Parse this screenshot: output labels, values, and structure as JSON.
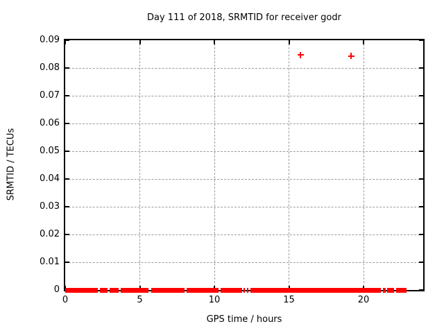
{
  "chart_data": {
    "type": "scatter",
    "title": "Day 111 of 2018, SRMTID for receiver godr",
    "xlabel": "GPS time / hours",
    "ylabel": "SRMTID / TECUs",
    "xlim": [
      0,
      24
    ],
    "ylim": [
      0,
      0.09
    ],
    "xticks": {
      "values": [
        0,
        5,
        10,
        15,
        20
      ],
      "labels": [
        "0",
        "5",
        "10",
        "15",
        "20"
      ]
    },
    "yticks": {
      "values": [
        0,
        0.01,
        0.02,
        0.03,
        0.04,
        0.05,
        0.06,
        0.07,
        0.08,
        0.09
      ],
      "labels": [
        "0",
        "0.01",
        "0.02",
        "0.03",
        "0.04",
        "0.05",
        "0.06",
        "0.07",
        "0.08",
        "0.09"
      ]
    },
    "grid": true,
    "legend_position": "none",
    "marker": {
      "shape": "plus",
      "color": "#ff0000"
    },
    "axis_color": "#000000",
    "grid_color": "#9a9a9a",
    "series": [
      {
        "name": "SRMTID",
        "outlier_points": [
          {
            "x": 15.77,
            "y": 0.0847
          },
          {
            "x": 19.17,
            "y": 0.0843
          }
        ],
        "baseline_y": 0,
        "baseline_segments": [
          [
            0.0,
            2.2
          ],
          [
            2.33,
            2.85
          ],
          [
            2.98,
            3.6
          ],
          [
            3.72,
            5.6
          ],
          [
            5.75,
            8.0
          ],
          [
            8.15,
            10.28
          ],
          [
            10.42,
            11.85
          ],
          [
            11.97,
            12.07
          ],
          [
            12.17,
            12.28
          ],
          [
            12.4,
            21.15
          ],
          [
            21.3,
            21.5
          ],
          [
            21.6,
            22.05
          ],
          [
            22.2,
            22.88
          ]
        ]
      }
    ]
  }
}
